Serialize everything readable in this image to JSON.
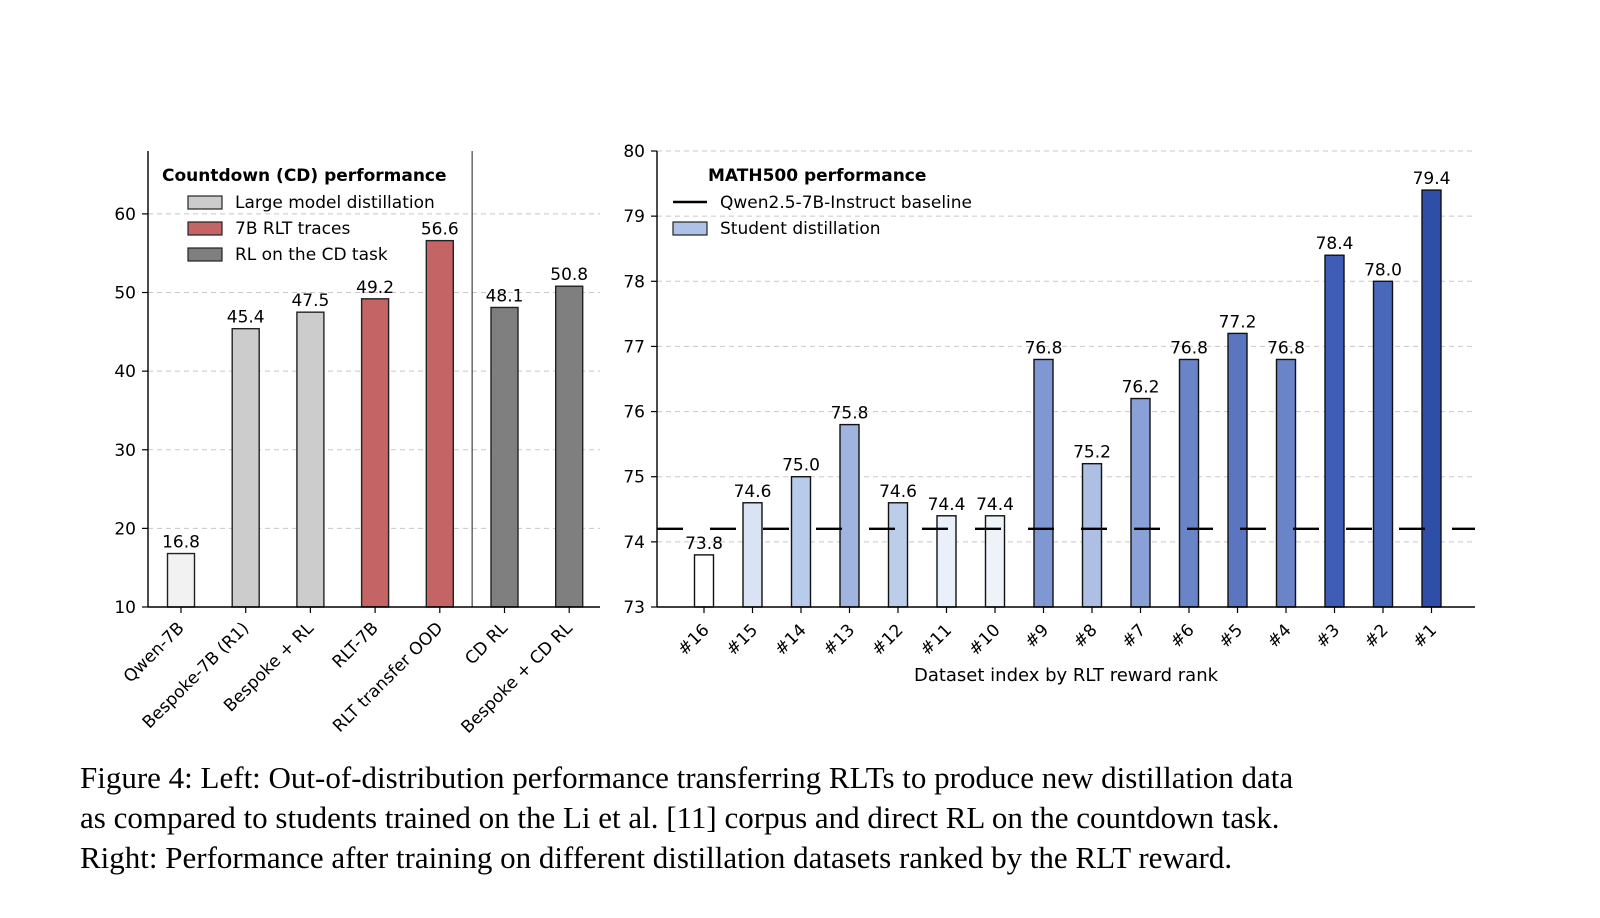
{
  "chart_data": [
    {
      "type": "bar",
      "panel": "left",
      "legend_title": "Countdown (CD) performance",
      "legend": [
        {
          "label": "Large model distillation",
          "color": "#cccccc"
        },
        {
          "label": "7B RLT traces",
          "color": "#c46464"
        },
        {
          "label": "RL on the CD task",
          "color": "#7f7f7f"
        }
      ],
      "categories": [
        "Qwen-7B",
        "Bespoke-7B (R1)",
        "Bespoke + RL",
        "RLT-7B",
        "RLT transfer OOD",
        "CD RL",
        "Bespoke + CD RL"
      ],
      "values": [
        16.8,
        45.4,
        47.5,
        49.2,
        56.6,
        48.1,
        50.8
      ],
      "value_labels": [
        "16.8",
        "45.4",
        "47.5",
        "49.2",
        "56.6",
        "48.1",
        "50.8"
      ],
      "colors": [
        "#f2f2f2",
        "#cccccc",
        "#cccccc",
        "#c46464",
        "#c46464",
        "#7f7f7f",
        "#7f7f7f"
      ],
      "ylim": [
        10,
        68
      ],
      "yticks": [
        10,
        20,
        30,
        40,
        50,
        60
      ],
      "grid": "y-dashed",
      "divider_after_index": 4
    },
    {
      "type": "bar",
      "panel": "right",
      "legend_title": "MATH500 performance",
      "legend": [
        {
          "label": "Qwen2.5-7B-Instruct baseline",
          "kind": "dashed-line",
          "color": "#000000"
        },
        {
          "label": "Student distillation",
          "kind": "patch",
          "color": "#aec1e6"
        }
      ],
      "xlabel": "Dataset index by RLT reward rank",
      "categories": [
        "#16",
        "#15",
        "#14",
        "#13",
        "#12",
        "#11",
        "#10",
        "#9",
        "#8",
        "#7",
        "#6",
        "#5",
        "#4",
        "#3",
        "#2",
        "#1"
      ],
      "values": [
        73.8,
        74.6,
        75.0,
        75.8,
        74.6,
        74.4,
        74.4,
        76.8,
        75.2,
        76.2,
        76.8,
        77.2,
        76.8,
        78.4,
        78.0,
        79.4
      ],
      "value_labels": [
        "73.8",
        "74.6",
        "75.0",
        "75.8",
        "74.6",
        "74.4",
        "74.4",
        "76.8",
        "75.2",
        "76.2",
        "76.8",
        "77.2",
        "76.8",
        "78.4",
        "78.0",
        "79.4"
      ],
      "colors": [
        "#ffffff",
        "#d9e3f4",
        "#b9cbea",
        "#9fb5df",
        "#bccdea",
        "#eaf0f9",
        "#eef3fa",
        "#7f98d3",
        "#aebfe4",
        "#8aa1d8",
        "#6a84c8",
        "#5a76c1",
        "#6a84c8",
        "#3f5db4",
        "#4a68b9",
        "#2f4ea8"
      ],
      "baseline": 74.2,
      "ylim": [
        73,
        80
      ],
      "yticks": [
        73,
        74,
        75,
        76,
        77,
        78,
        79,
        80
      ],
      "grid": "y-dashed"
    }
  ],
  "caption": {
    "lines": [
      "Figure 4:  Left: Out-of-distribution performance transferring RLTs to produce new distillation data",
      "as compared to students trained on the Li et al. [11] corpus and direct RL on the countdown task.",
      "Right: Performance after training on different distillation datasets ranked by the RLT reward."
    ]
  }
}
